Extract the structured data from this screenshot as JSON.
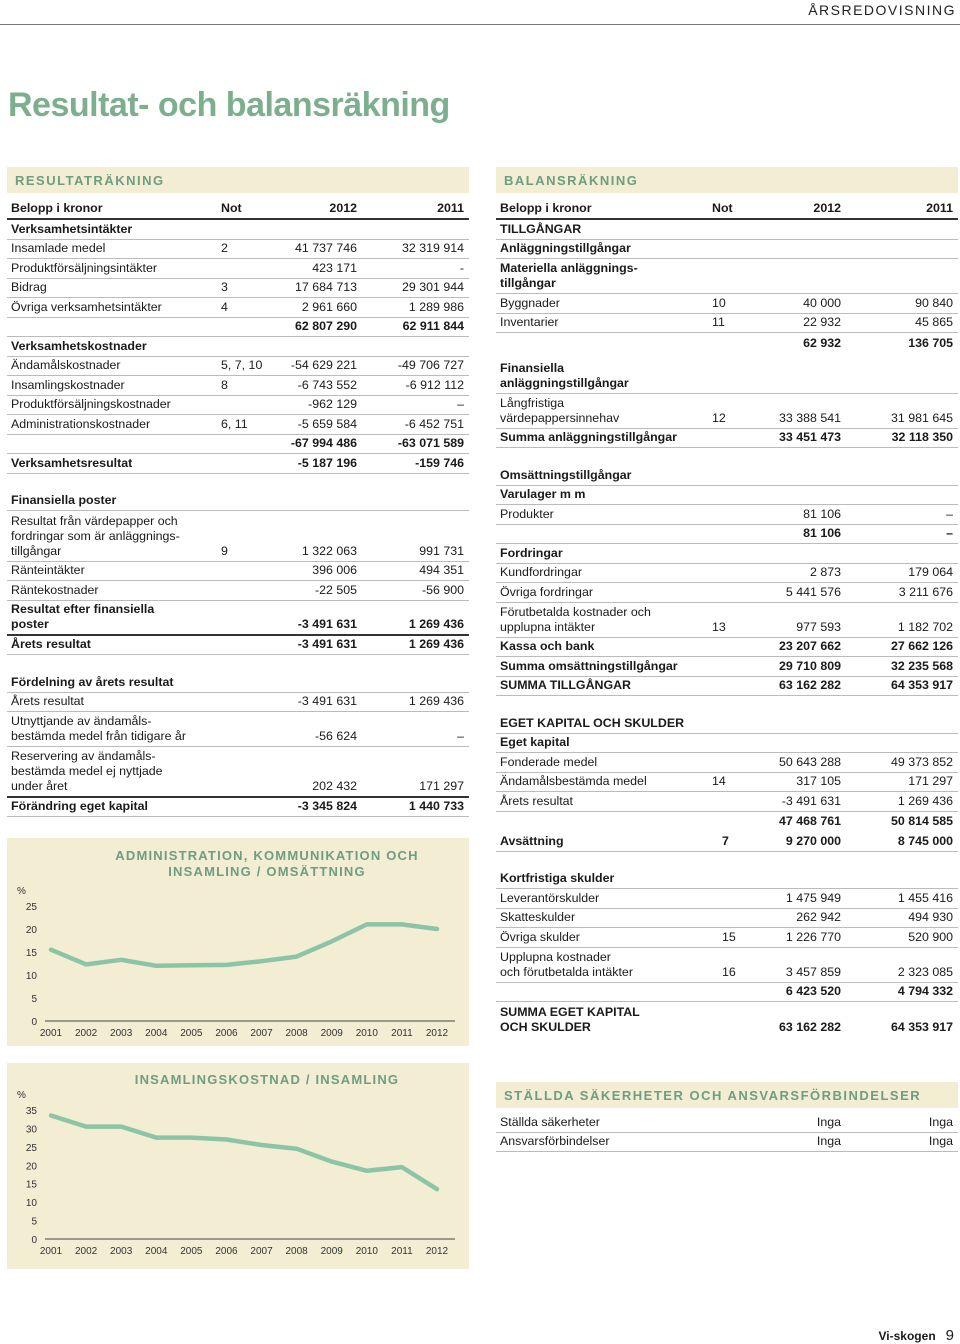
{
  "header": {
    "section": "ÅRSREDOVISNING"
  },
  "page_title": "Resultat- och balansräkning",
  "resultat": {
    "heading": "RESULTATRÄKNING",
    "columns": [
      "Belopp i kronor",
      "Not",
      "2012",
      "2011"
    ],
    "rows": [
      {
        "label": "Verksamhetsintäkter",
        "not": "",
        "y2012": "",
        "y2011": "",
        "bold": true
      },
      {
        "label": "Insamlade medel",
        "not": "2",
        "y2012": "41 737 746",
        "y2011": "32 319 914"
      },
      {
        "label": "Produktförsäljningsintäkter",
        "not": "",
        "y2012": "423 171",
        "y2011": "-"
      },
      {
        "label": "Bidrag",
        "not": "3",
        "y2012": "17 684 713",
        "y2011": "29 301 944"
      },
      {
        "label": "Övriga verksamhetsintäkter",
        "not": "4",
        "y2012": "2 961 660",
        "y2011": "1 289 986"
      },
      {
        "label": "",
        "not": "",
        "y2012": "62 807 290",
        "y2011": "62 911 844",
        "bold": true
      },
      {
        "label": "Verksamhetskostnader",
        "not": "",
        "y2012": "",
        "y2011": "",
        "bold": true
      },
      {
        "label": "Ändamålskostnader",
        "not": "5, 7, 10",
        "y2012": "-54 629 221",
        "y2011": "-49 706 727"
      },
      {
        "label": "Insamlingskostnader",
        "not": "8",
        "y2012": "-6 743 552",
        "y2011": "-6 912 112"
      },
      {
        "label": "Produktförsäljningskostnader",
        "not": "",
        "y2012": "-962 129",
        "y2011": "–"
      },
      {
        "label": "Administrationskostnader",
        "not": "6, 11",
        "y2012": "-5 659 584",
        "y2011": "-6 452 751"
      },
      {
        "label": "",
        "not": "",
        "y2012": "-67 994 486",
        "y2011": "-63 071 589",
        "bold": true
      },
      {
        "label": "Verksamhetsresultat",
        "not": "",
        "y2012": "-5 187 196",
        "y2011": "-159 746",
        "bold": true,
        "gap": true
      },
      {
        "label": "Finansiella poster",
        "not": "",
        "y2012": "",
        "y2011": "",
        "bold": true
      },
      {
        "label": "Resultat från värdepapper och\nfordringar som är anläggnings-\ntillgångar",
        "not": "9",
        "y2012": "1 322 063",
        "y2011": "991 731",
        "lines": 3
      },
      {
        "label": "Ränteintäkter",
        "not": "",
        "y2012": "396 006",
        "y2011": "494 351"
      },
      {
        "label": "Räntekostnader",
        "not": "",
        "y2012": "-22 505",
        "y2011": "-56 900"
      },
      {
        "label": "Resultat efter finansiella\nposter",
        "not": "",
        "y2012": "-3 491 631",
        "y2011": "1 269 436",
        "bold": true,
        "lines": 2,
        "thick": true
      },
      {
        "label": "Årets resultat",
        "not": "",
        "y2012": "-3 491 631",
        "y2011": "1 269 436",
        "bold": true,
        "gap": true
      },
      {
        "label": "Fördelning av årets resultat",
        "not": "",
        "y2012": "",
        "y2011": "",
        "bold": true
      },
      {
        "label": "Årets resultat",
        "not": "",
        "y2012": "-3 491 631",
        "y2011": "1 269 436"
      },
      {
        "label": "Utnyttjande av ändamåls-\nbestämda medel från tidigare år",
        "not": "",
        "y2012": "-56 624",
        "y2011": "–",
        "lines": 2
      },
      {
        "label": "Reservering av ändamåls-\nbestämda medel ej nyttjade\nunder året",
        "not": "",
        "y2012": "202 432",
        "y2011": "171 297",
        "lines": 3,
        "thick": true
      },
      {
        "label": "Förändring eget kapital",
        "not": "",
        "y2012": "-3 345 824",
        "y2011": "1 440 733",
        "bold": true
      }
    ]
  },
  "balans": {
    "heading": "BALANSRÄKNING",
    "columns": [
      "Belopp i kronor",
      "Not",
      "2012",
      "2011"
    ],
    "rows": [
      {
        "label": "TILLGÅNGAR",
        "not": "",
        "y2012": "",
        "y2011": "",
        "bold": true
      },
      {
        "label": "Anläggningstillgångar",
        "not": "",
        "y2012": "",
        "y2011": "",
        "bold": true
      },
      {
        "label": "Materiella anläggnings-\ntillgångar",
        "not": "",
        "y2012": "",
        "y2011": "",
        "bold": true,
        "lines": 2
      },
      {
        "label": "Byggnader",
        "not": "10",
        "y2012": "40 000",
        "y2011": "90 840"
      },
      {
        "label": "Inventarier",
        "not": "11",
        "y2012": "22 932",
        "y2011": "45 865"
      },
      {
        "label": "",
        "not": "",
        "y2012": "62 932",
        "y2011": "136 705",
        "bold": true,
        "nob": true
      },
      {
        "label": "Finansiella\nanläggningstillgångar",
        "not": "",
        "y2012": "",
        "y2011": "",
        "bold": true,
        "lines": 2,
        "pad": 6
      },
      {
        "label": "Långfristiga\nvärdepappersinnehav",
        "not": "12",
        "y2012": "33 388 541",
        "y2011": "31 981 645",
        "lines": 2
      },
      {
        "label": "Summa anläggningstillgångar",
        "not": "",
        "y2012": "33 451 473",
        "y2011": "32 118 350",
        "bold": true,
        "gap": true
      },
      {
        "label": "Omsättningstillgångar",
        "not": "",
        "y2012": "",
        "y2011": "",
        "bold": true
      },
      {
        "label": "Varulager m m",
        "not": "",
        "y2012": "",
        "y2011": "",
        "bold": true
      },
      {
        "label": "Produkter",
        "not": "",
        "y2012": "81 106",
        "y2011": "–"
      },
      {
        "label": "",
        "not": "",
        "y2012": "81 106",
        "y2011": "–",
        "bold": true
      },
      {
        "label": "Fordringar",
        "not": "",
        "y2012": "",
        "y2011": "",
        "bold": true
      },
      {
        "label": "Kundfordringar",
        "not": "",
        "y2012": "2 873",
        "y2011": "179 064"
      },
      {
        "label": "Övriga fordringar",
        "not": "",
        "y2012": "5 441 576",
        "y2011": "3 211 676"
      },
      {
        "label": "Förutbetalda kostnader och\nupplupna intäkter",
        "not": "13",
        "y2012": "977 593",
        "y2011": "1 182 702",
        "lines": 2
      },
      {
        "label": "Kassa och bank",
        "not": "",
        "y2012": "23 207 662",
        "y2011": "27 662 126",
        "bold": true
      },
      {
        "label": "Summa omsättningstillgångar",
        "not": "",
        "y2012": "29 710 809",
        "y2011": "32 235 568",
        "bold": true
      },
      {
        "label": "SUMMA TILLGÅNGAR",
        "not": "",
        "y2012": "63 162 282",
        "y2011": "64 353 917",
        "bold": true,
        "gap": true
      },
      {
        "label": "EGET KAPITAL OCH SKULDER",
        "not": "",
        "y2012": "",
        "y2011": "",
        "bold": true
      },
      {
        "label": "Eget kapital",
        "not": "",
        "y2012": "",
        "y2011": "",
        "bold": true
      },
      {
        "label": "Fonderade medel",
        "not": "",
        "y2012": "50 643 288",
        "y2011": "49 373 852"
      },
      {
        "label": "Ändamålsbestämda medel",
        "not": "14",
        "y2012": "317 105",
        "y2011": "171 297"
      },
      {
        "label": "Årets resultat",
        "not": "",
        "y2012": "-3 491 631",
        "y2011": "1 269 436"
      },
      {
        "label": "",
        "not": "",
        "y2012": "47 468 761",
        "y2011": "50 814 585",
        "bold": true,
        "nob": true
      }
    ]
  },
  "balans2": {
    "rows": [
      {
        "label": "Avsättning",
        "not": "7",
        "y2012": "9 270 000",
        "y2011": "8 745 000",
        "bold": true,
        "label_bold": true,
        "gap": true
      },
      {
        "label": "Kortfristiga skulder",
        "not": "",
        "y2012": "",
        "y2011": "",
        "bold": true
      },
      {
        "label": "Leverantörskulder",
        "not": "",
        "y2012": "1 475 949",
        "y2011": "1 455 416"
      },
      {
        "label": "Skatteskulder",
        "not": "",
        "y2012": "262 942",
        "y2011": "494 930"
      },
      {
        "label": "Övriga skulder",
        "not": "15",
        "y2012": "1 226 770",
        "y2011": "520 900"
      },
      {
        "label": "Upplupna kostnader\noch förutbetalda intäkter",
        "not": "16",
        "y2012": "3 457 859",
        "y2011": "2 323 085",
        "lines": 2
      },
      {
        "label": "",
        "not": "",
        "y2012": "6 423 520",
        "y2011": "4 794 332",
        "bold": true
      },
      {
        "label": "SUMMA EGET KAPITAL\nOCH SKULDER",
        "not": "",
        "y2012": "63 162 282",
        "y2011": "64 353 917",
        "bold": true,
        "lines": 2,
        "nob": true
      }
    ]
  },
  "stallda": {
    "heading": "STÄLLDA SÄKERHETER OCH ANSVARSFÖRBINDELSER",
    "rows": [
      {
        "label": "Ställda säkerheter",
        "y2012": "Inga",
        "y2011": "Inga"
      },
      {
        "label": "Ansvarsförbindelser",
        "y2012": "Inga",
        "y2011": "Inga"
      }
    ]
  },
  "chart_data": [
    {
      "type": "line",
      "title": "ADMINISTRATION, KOMMUNIKATION OCH\nINSAMLING / OMSÄTTNING",
      "ylabel": "%",
      "x": [
        "2001",
        "2002",
        "2003",
        "2004",
        "2005",
        "2006",
        "2007",
        "2008",
        "2009",
        "2010",
        "2011",
        "2012"
      ],
      "yticks": [
        0,
        5,
        10,
        15,
        20,
        25
      ],
      "ylim": [
        0,
        25
      ],
      "series": [
        {
          "values": [
            15.5,
            12.3,
            13.3,
            12.0,
            12.1,
            12.2,
            13.0,
            14.0,
            17.3,
            21.0,
            21.0,
            20.0
          ]
        }
      ],
      "color": "#8cc4a6"
    },
    {
      "type": "line",
      "title": "INSAMLINGSKOSTNAD / INSAMLING",
      "ylabel": "%",
      "x": [
        "2001",
        "2002",
        "2003",
        "2004",
        "2005",
        "2006",
        "2007",
        "2008",
        "2009",
        "2010",
        "2011",
        "2012"
      ],
      "yticks": [
        0,
        5,
        10,
        15,
        20,
        25,
        30,
        35
      ],
      "ylim": [
        0,
        35
      ],
      "series": [
        {
          "values": [
            33.5,
            30.5,
            30.5,
            27.5,
            27.5,
            27.0,
            25.5,
            24.5,
            21.0,
            18.5,
            19.5,
            13.5
          ]
        }
      ],
      "color": "#8cc4a6"
    }
  ],
  "footer": {
    "brand": "Vi-skogen",
    "page": "9"
  }
}
